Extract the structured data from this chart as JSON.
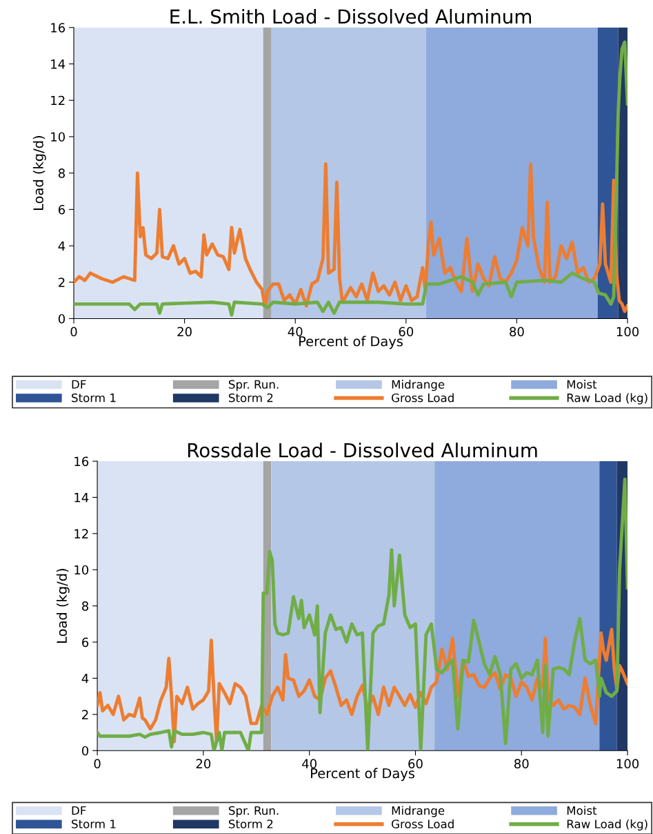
{
  "chart_data": [
    {
      "type": "line",
      "title": "E.L. Smith Load - Dissolved Aluminum",
      "xlabel": "Percent of Days",
      "ylabel": "Load (kg/d)",
      "xlim": [
        0,
        100
      ],
      "xticks": [
        0,
        20,
        40,
        60,
        80,
        100
      ],
      "ylim": [
        0,
        16
      ],
      "yticks": [
        0,
        2,
        4,
        6,
        8,
        10,
        12,
        14,
        16
      ],
      "grid": false,
      "legend": "bottom",
      "bands": [
        {
          "axis": "x",
          "from": 0,
          "to": 34.2,
          "label": "DF",
          "color": "#dae3f3"
        },
        {
          "axis": "x",
          "from": 34.2,
          "to": 35.7,
          "label": "Spr. Run.",
          "color": "#a5a5a5"
        },
        {
          "axis": "x",
          "from": 35.7,
          "to": 63.6,
          "label": "Midrange",
          "color": "#b4c7e7"
        },
        {
          "axis": "x",
          "from": 63.6,
          "to": 94.6,
          "label": "Moist",
          "color": "#8faadc"
        },
        {
          "axis": "x",
          "from": 94.6,
          "to": 98.3,
          "label": "Storm 1",
          "color": "#2f5597"
        },
        {
          "axis": "x",
          "from": 98.3,
          "to": 100,
          "label": "Storm 2",
          "color": "#203864"
        }
      ],
      "series": [
        {
          "name": "Gross Load",
          "color": "#ed7d31",
          "x": [
            0,
            1,
            2,
            3,
            5,
            7,
            9,
            10,
            11,
            11.5,
            12,
            12.5,
            13,
            14,
            15,
            15.5,
            16,
            17,
            18,
            19,
            20,
            21,
            22,
            23,
            23.5,
            24,
            25,
            26,
            27,
            28,
            28.5,
            29,
            30,
            31,
            32,
            33,
            34,
            34.5,
            35,
            36,
            37,
            38,
            39,
            40,
            41,
            42,
            43,
            44,
            45,
            45.5,
            46,
            47,
            47.5,
            48,
            48.5,
            50,
            51,
            52,
            53,
            54,
            55,
            56,
            57,
            58,
            59,
            60,
            61,
            62,
            63,
            63.5,
            64,
            64.5,
            65,
            66,
            67,
            68,
            69,
            70,
            71,
            72,
            73,
            74,
            75,
            76,
            77,
            78,
            79,
            80,
            81,
            82,
            82.5,
            83,
            84,
            85,
            85.5,
            86,
            87,
            88,
            89,
            90,
            91,
            92,
            93,
            94,
            95,
            95.5,
            96,
            97,
            97.5,
            98,
            98.5,
            99,
            99.5,
            100
          ],
          "values": [
            2.0,
            2.3,
            2.1,
            2.5,
            2.2,
            2.0,
            2.3,
            2.2,
            2.1,
            8.0,
            4.5,
            5.0,
            3.5,
            3.3,
            3.6,
            6.0,
            3.4,
            3.3,
            4.0,
            3.0,
            3.3,
            2.5,
            2.6,
            2.3,
            4.6,
            3.5,
            4.1,
            3.5,
            3.4,
            2.7,
            5.0,
            3.6,
            4.9,
            3.3,
            2.6,
            2.0,
            1.6,
            0.7,
            1.5,
            1.9,
            1.9,
            1.0,
            1.3,
            0.8,
            1.6,
            0.7,
            1.9,
            2.1,
            3.3,
            8.5,
            2.5,
            2.7,
            7.5,
            2.2,
            0.9,
            1.7,
            1.2,
            1.9,
            1.0,
            2.5,
            1.5,
            1.8,
            1.3,
            2.0,
            1.0,
            1.8,
            1.0,
            1.2,
            2.8,
            1.5,
            4.0,
            5.3,
            3.5,
            4.4,
            2.5,
            2.8,
            2.0,
            1.5,
            4.4,
            1.5,
            3.0,
            2.2,
            1.8,
            3.4,
            2.2,
            2.0,
            2.5,
            3.2,
            5.0,
            4.0,
            8.5,
            4.5,
            2.8,
            2.0,
            6.4,
            2.0,
            2.3,
            4.0,
            3.3,
            4.2,
            2.5,
            2.8,
            2.0,
            2.2,
            3.0,
            6.3,
            3.0,
            2.0,
            7.6,
            2.5,
            1.0,
            0.8,
            0.4,
            0.7
          ]
        },
        {
          "name": "Raw Load (kg)",
          "color": "#70ad47",
          "x": [
            0,
            10,
            11,
            12,
            15,
            15.5,
            16,
            20,
            25,
            28,
            28.5,
            29,
            34,
            35,
            36,
            40,
            44,
            45,
            46,
            47,
            48,
            55,
            60,
            63,
            63.7,
            66,
            68,
            70,
            72,
            73,
            74,
            78,
            79,
            80,
            85,
            88,
            90,
            92,
            94,
            94.8,
            96,
            97,
            97.5,
            98,
            98.3,
            98.6,
            99,
            99.5,
            100
          ],
          "values": [
            0.8,
            0.8,
            0.5,
            0.8,
            0.8,
            0.3,
            0.8,
            0.85,
            0.9,
            0.8,
            0.2,
            0.9,
            0.8,
            0.6,
            0.9,
            0.8,
            0.9,
            0.4,
            0.9,
            0.3,
            0.9,
            0.9,
            0.8,
            0.8,
            1.9,
            1.9,
            2.1,
            2.3,
            2.0,
            1.3,
            1.9,
            2.0,
            1.2,
            2.0,
            2.1,
            2.0,
            2.5,
            2.2,
            2.0,
            1.4,
            1.3,
            0.8,
            1.2,
            7.0,
            11.2,
            13.2,
            14.8,
            15.2,
            11.8
          ]
        }
      ]
    },
    {
      "type": "line",
      "title": "Rossdale Load - Dissolved Aluminum",
      "xlabel": "Percent of Days",
      "ylabel": "Load (kg/d)",
      "xlim": [
        0,
        100
      ],
      "xticks": [
        0,
        20,
        40,
        60,
        80,
        100
      ],
      "ylim": [
        0,
        16
      ],
      "yticks": [
        0,
        2,
        4,
        6,
        8,
        10,
        12,
        14,
        16
      ],
      "grid": false,
      "legend": "bottom",
      "bands": [
        {
          "axis": "x",
          "from": 0,
          "to": 31.3,
          "label": "DF",
          "color": "#dae3f3"
        },
        {
          "axis": "x",
          "from": 31.3,
          "to": 32.8,
          "label": "Spr. Run.",
          "color": "#a5a5a5"
        },
        {
          "axis": "x",
          "from": 32.8,
          "to": 63.6,
          "label": "Midrange",
          "color": "#b4c7e7"
        },
        {
          "axis": "x",
          "from": 63.6,
          "to": 94.7,
          "label": "Moist",
          "color": "#8faadc"
        },
        {
          "axis": "x",
          "from": 94.7,
          "to": 98.0,
          "label": "Storm 1",
          "color": "#2f5597"
        },
        {
          "axis": "x",
          "from": 98.0,
          "to": 100,
          "label": "Storm 2",
          "color": "#203864"
        }
      ],
      "series": [
        {
          "name": "Gross Load",
          "color": "#ed7d31",
          "x": [
            0,
            0.5,
            1,
            2,
            3,
            4,
            5,
            6,
            7,
            8,
            8.5,
            9,
            10,
            11,
            12,
            13,
            13.5,
            14,
            14.5,
            15,
            16,
            17,
            18,
            19,
            20,
            21,
            21.5,
            22,
            22.5,
            23,
            24,
            25,
            26,
            27,
            28,
            29,
            30,
            31,
            32,
            33,
            34,
            35,
            35.5,
            36,
            37,
            38,
            39,
            40,
            41,
            42,
            43,
            44,
            45,
            46,
            47,
            48,
            49,
            50,
            51,
            52,
            53,
            54,
            55,
            56,
            57,
            58,
            59,
            60,
            61,
            62,
            63,
            64,
            65,
            66,
            67,
            68,
            69,
            70,
            71,
            72,
            73,
            74,
            75,
            76,
            77,
            78,
            79,
            80,
            81,
            82,
            83,
            84,
            84.5,
            85,
            86,
            87,
            88,
            89,
            90,
            91,
            92,
            93,
            94,
            95,
            95.5,
            96,
            97,
            97.5,
            98,
            98.5,
            99,
            100
          ],
          "values": [
            2.5,
            3.2,
            2.2,
            2.5,
            2.0,
            3.0,
            1.7,
            2.0,
            1.9,
            2.9,
            1.8,
            1.7,
            1.2,
            1.7,
            2.8,
            3.5,
            5.1,
            3.0,
            0.5,
            3.0,
            2.6,
            3.5,
            2.3,
            2.6,
            2.8,
            3.3,
            6.1,
            3.0,
            0.5,
            3.7,
            3.2,
            2.6,
            3.7,
            3.5,
            3.0,
            1.5,
            1.5,
            2.5,
            2.0,
            3.0,
            3.5,
            2.8,
            5.3,
            4.0,
            3.9,
            3.0,
            3.3,
            3.9,
            3.0,
            2.8,
            4.0,
            4.4,
            3.5,
            2.5,
            2.8,
            2.0,
            3.0,
            3.6,
            2.3,
            3.0,
            2.0,
            3.5,
            2.5,
            3.5,
            3.0,
            2.5,
            3.1,
            2.4,
            3.2,
            2.6,
            3.5,
            3.8,
            5.6,
            4.5,
            6.2,
            3.0,
            5.0,
            4.1,
            4.2,
            3.6,
            3.5,
            4.0,
            4.3,
            3.4,
            4.2,
            4.0,
            3.0,
            3.8,
            3.5,
            2.8,
            4.0,
            3.5,
            6.2,
            3.0,
            2.5,
            2.8,
            2.3,
            2.5,
            2.4,
            2.0,
            4.0,
            2.5,
            1.5,
            6.5,
            5.5,
            5.0,
            6.7,
            4.5,
            3.4,
            4.7,
            4.4,
            3.7
          ]
        },
        {
          "name": "Raw Load (kg)",
          "color": "#70ad47",
          "x": [
            0,
            0.5,
            3,
            6,
            8,
            9,
            10,
            12,
            13.5,
            14,
            14.5,
            16,
            18,
            20,
            21.5,
            22,
            23,
            23.5,
            24,
            27,
            28.5,
            29,
            31,
            31.3,
            32,
            32.5,
            33,
            33.5,
            34,
            35,
            36,
            37,
            38,
            38.5,
            39,
            40,
            41,
            41.5,
            42,
            43,
            44,
            45,
            46,
            47,
            48,
            49,
            50,
            51,
            52,
            53,
            54,
            55,
            55.5,
            56,
            57,
            58,
            59,
            60,
            61,
            62,
            63,
            64,
            65,
            66,
            67,
            68,
            69,
            70,
            71,
            72,
            73,
            74,
            75,
            76,
            77,
            78,
            79,
            80,
            81,
            82,
            83,
            84,
            84.5,
            85,
            86,
            87,
            88,
            89,
            90,
            91,
            92,
            93,
            94,
            94.7,
            95,
            96,
            97,
            98,
            98.5,
            99,
            99.5,
            100
          ],
          "values": [
            1.0,
            0.8,
            0.8,
            0.8,
            0.9,
            0.75,
            0.9,
            1.0,
            1.1,
            0.2,
            1.1,
            0.9,
            0.9,
            1.0,
            0.9,
            0.0,
            1.0,
            0.0,
            1.0,
            1.0,
            0.0,
            1.0,
            1.0,
            8.7,
            8.7,
            11.0,
            10.5,
            7.0,
            6.5,
            6.4,
            6.5,
            8.5,
            7.3,
            8.3,
            6.8,
            7.5,
            6.4,
            8.0,
            2.1,
            6.5,
            7.5,
            6.7,
            6.8,
            6.0,
            7.0,
            6.4,
            6.5,
            0.0,
            6.5,
            6.9,
            7.0,
            8.6,
            11.1,
            8.0,
            10.8,
            7.5,
            6.8,
            7.0,
            0.0,
            6.4,
            7.0,
            4.5,
            4.3,
            4.7,
            5.0,
            1.2,
            5.0,
            4.9,
            7.2,
            6.0,
            4.8,
            4.2,
            5.2,
            4.2,
            0.4,
            4.5,
            4.8,
            4.0,
            4.3,
            4.2,
            5.0,
            1.0,
            4.7,
            0.8,
            4.5,
            4.6,
            4.5,
            4.2,
            6.0,
            7.3,
            5.0,
            4.8,
            5.0,
            3.0,
            4.0,
            3.2,
            3.0,
            3.3,
            10.0,
            12.5,
            15.0,
            9.0
          ]
        }
      ]
    }
  ]
}
